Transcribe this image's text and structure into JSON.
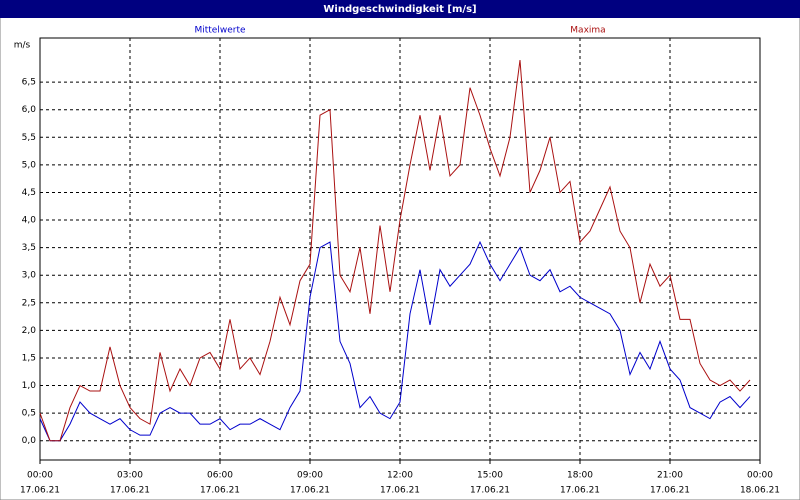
{
  "chart_data": {
    "type": "line",
    "title": "Windgeschwindigkeit [m/s]",
    "y_label": "m/s",
    "x": [
      0,
      20,
      40,
      60,
      80,
      100,
      120,
      140,
      160,
      180,
      200,
      220,
      240,
      260,
      280,
      300,
      320,
      340,
      360,
      380,
      400,
      420,
      440,
      460,
      480,
      500,
      520,
      540,
      560,
      580,
      600,
      620,
      640,
      660,
      680,
      700,
      720,
      740,
      760,
      780,
      800,
      820,
      840,
      860,
      880,
      900,
      920,
      940,
      960,
      980,
      1000,
      1020,
      1040,
      1060,
      1080,
      1100,
      1120,
      1140,
      1160,
      1180,
      1200,
      1220,
      1240,
      1260,
      1280,
      1300,
      1320,
      1340,
      1360,
      1380,
      1400,
      1420
    ],
    "xlim": [
      0,
      1440
    ],
    "xticks": [
      {
        "value": 0,
        "label": "00:00"
      },
      {
        "value": 180,
        "label": "03:00"
      },
      {
        "value": 360,
        "label": "06:00"
      },
      {
        "value": 540,
        "label": "09:00"
      },
      {
        "value": 720,
        "label": "12:00"
      },
      {
        "value": 900,
        "label": "15:00"
      },
      {
        "value": 1080,
        "label": "18:00"
      },
      {
        "value": 1260,
        "label": "21:00"
      },
      {
        "value": 1440,
        "label": "00:00"
      }
    ],
    "xtick_dates": [
      "17.06.21",
      "17.06.21",
      "17.06.21",
      "17.06.21",
      "17.06.21",
      "17.06.21",
      "17.06.21",
      "17.06.21",
      "18.06.21"
    ],
    "ylim": [
      -0.35,
      7.3
    ],
    "yticks": [
      {
        "value": 0,
        "label": "0,0"
      },
      {
        "value": 0.5,
        "label": "0,5"
      },
      {
        "value": 1,
        "label": "1,0"
      },
      {
        "value": 1.5,
        "label": "1,5"
      },
      {
        "value": 2,
        "label": "2,0"
      },
      {
        "value": 2.5,
        "label": "2,5"
      },
      {
        "value": 3,
        "label": "3,0"
      },
      {
        "value": 3.5,
        "label": "3,5"
      },
      {
        "value": 4,
        "label": "4,0"
      },
      {
        "value": 4.5,
        "label": "4,5"
      },
      {
        "value": 5,
        "label": "5,0"
      },
      {
        "value": 5.5,
        "label": "5,5"
      },
      {
        "value": 6,
        "label": "6,0"
      },
      {
        "value": 6.5,
        "label": "6,5"
      }
    ],
    "grid": true,
    "series": [
      {
        "name": "Mittelwerte",
        "color": "#0000cc",
        "values": [
          0.4,
          0,
          0,
          0.3,
          0.7,
          0.5,
          0.4,
          0.3,
          0.4,
          0.2,
          0.1,
          0.1,
          0.5,
          0.6,
          0.5,
          0.5,
          0.3,
          0.3,
          0.4,
          0.2,
          0.3,
          0.3,
          0.4,
          0.3,
          0.2,
          0.6,
          0.9,
          2.6,
          3.5,
          3.6,
          1.8,
          1.4,
          0.6,
          0.8,
          0.5,
          0.4,
          0.7,
          2.3,
          3.1,
          2.1,
          3.1,
          2.8,
          3.0,
          3.2,
          3.6,
          3.2,
          2.9,
          3.2,
          3.5,
          3.0,
          2.9,
          3.1,
          2.7,
          2.8,
          2.6,
          2.5,
          2.4,
          2.3,
          2.0,
          1.2,
          1.6,
          1.3,
          1.8,
          1.3,
          1.1,
          0.6,
          0.5,
          0.4,
          0.7,
          0.8,
          0.6,
          0.8
        ]
      },
      {
        "name": "Maxima",
        "color": "#aa1111",
        "values": [
          0.5,
          0,
          0,
          0.6,
          1.0,
          0.9,
          0.9,
          1.7,
          1.0,
          0.6,
          0.4,
          0.3,
          1.6,
          0.9,
          1.3,
          1.0,
          1.5,
          1.6,
          1.3,
          2.2,
          1.3,
          1.5,
          1.2,
          1.8,
          2.6,
          2.1,
          2.9,
          3.2,
          5.9,
          6.0,
          3.0,
          2.7,
          3.5,
          2.3,
          3.9,
          2.7,
          4.0,
          5.0,
          5.9,
          4.9,
          5.9,
          4.8,
          5.0,
          6.4,
          5.9,
          5.3,
          4.8,
          5.5,
          6.9,
          4.5,
          4.9,
          5.5,
          4.5,
          4.7,
          3.6,
          3.8,
          4.2,
          4.6,
          3.8,
          3.5,
          2.5,
          3.2,
          2.8,
          3.0,
          2.2,
          2.2,
          1.4,
          1.1,
          1.0,
          1.1,
          0.9,
          1.1
        ]
      }
    ]
  }
}
